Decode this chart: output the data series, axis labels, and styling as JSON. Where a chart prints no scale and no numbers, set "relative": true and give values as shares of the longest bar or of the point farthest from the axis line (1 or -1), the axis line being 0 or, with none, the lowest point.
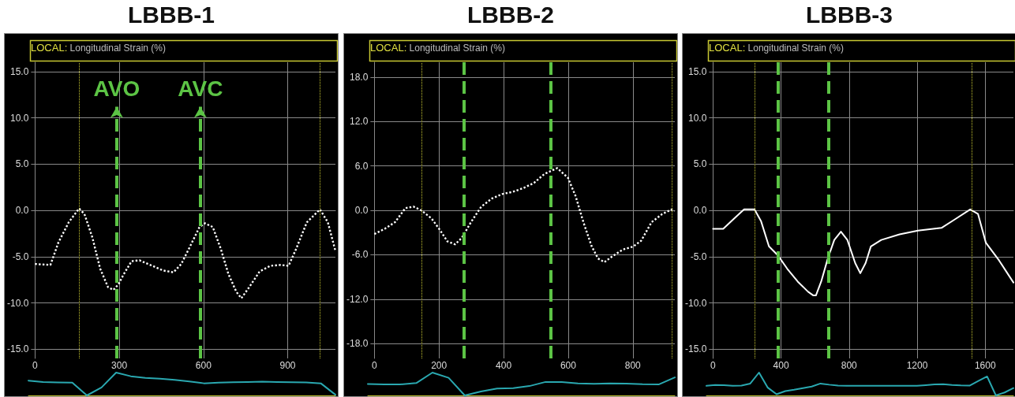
{
  "chart_data": [
    {
      "type": "line",
      "title": "LBBB-1",
      "ylabel": "Longitudinal Strain (%)",
      "annotations": [
        "LOCAL:"
      ],
      "color": "#ffffff",
      "line_style": "dotted",
      "marker": "none",
      "grid": true,
      "x": [
        0,
        55,
        83,
        120,
        157,
        176,
        204,
        232,
        260,
        279,
        297,
        316,
        344,
        372,
        418,
        456,
        493,
        521,
        549,
        586,
        605,
        633,
        661,
        689,
        717,
        735,
        763,
        800,
        838,
        875,
        903,
        931,
        968,
        1015,
        1043,
        1070
      ],
      "values": [
        -5.8,
        -5.9,
        -3.5,
        -1.3,
        0.2,
        -0.4,
        -2.9,
        -6.3,
        -8.3,
        -8.6,
        -8.0,
        -6.9,
        -5.5,
        -5.4,
        -6.0,
        -6.5,
        -6.7,
        -5.8,
        -4.1,
        -1.8,
        -1.4,
        -1.8,
        -4.1,
        -6.9,
        -8.8,
        -9.5,
        -8.3,
        -6.6,
        -6.0,
        -5.9,
        -6.0,
        -4.1,
        -1.3,
        0.1,
        -1.3,
        -4.4
      ],
      "xlim": [
        0,
        1070
      ],
      "xticks": [
        0,
        300,
        600,
        900
      ],
      "ylim": [
        -16,
        16
      ],
      "yticks": [
        {
          "value": -15,
          "label": "-15.0"
        },
        {
          "value": -10,
          "label": "-10.0"
        },
        {
          "value": -5,
          "label": "-5.0"
        },
        {
          "value": 0,
          "label": "0.0"
        },
        {
          "value": 5,
          "label": "5.0"
        },
        {
          "value": 10,
          "label": "10.0"
        },
        {
          "value": 15,
          "label": "15.0"
        }
      ],
      "ref_lines": [
        {
          "axis": "x",
          "value": 157,
          "color": "#c8c832",
          "line_style": "dotted"
        },
        {
          "axis": "x",
          "value": 1015,
          "color": "#c8c832",
          "line_style": "dotted"
        },
        {
          "axis": "x",
          "value": 291,
          "label": "AVO",
          "color": "#5cc445",
          "line_style": "dashed"
        },
        {
          "axis": "x",
          "value": 589,
          "label": "AVC",
          "color": "#5cc445",
          "line_style": "dashed"
        }
      ]
    },
    {
      "type": "line",
      "title": "LBBB-2",
      "ylabel": "Longitudinal Strain (%)",
      "annotations": [
        "LOCAL:"
      ],
      "color": "#ffffff",
      "line_style": "dotted",
      "marker": "none",
      "grid": true,
      "x": [
        0,
        32,
        64,
        96,
        121,
        145,
        177,
        202,
        226,
        250,
        271,
        299,
        331,
        364,
        396,
        429,
        461,
        494,
        526,
        546,
        566,
        599,
        623,
        647,
        672,
        692,
        712,
        737,
        769,
        801,
        826,
        858,
        891,
        919,
        929
      ],
      "values": [
        -3.2,
        -2.5,
        -1.6,
        0.3,
        0.5,
        0,
        -1.1,
        -2.6,
        -4.2,
        -4.6,
        -3.7,
        -1.6,
        0.5,
        1.6,
        2.2,
        2.5,
        3.0,
        3.7,
        4.9,
        5.3,
        5.7,
        4.4,
        1.9,
        -1.6,
        -4.8,
        -6.5,
        -7.0,
        -6.2,
        -5.3,
        -4.9,
        -4.1,
        -1.6,
        -0.5,
        0.1,
        -0.1
      ],
      "xlim": [
        0,
        930
      ],
      "xticks": [
        0,
        200,
        400,
        600,
        800
      ],
      "ylim": [
        -20,
        20
      ],
      "yticks": [
        {
          "value": -18,
          "label": "-18.0"
        },
        {
          "value": -12,
          "label": "-12.0"
        },
        {
          "value": -6,
          "label": "-6.0"
        },
        {
          "value": 0,
          "label": "0.0"
        },
        {
          "value": 6,
          "label": "6.0"
        },
        {
          "value": 12,
          "label": "12.0"
        },
        {
          "value": 18,
          "label": "18.0"
        }
      ],
      "ref_lines": [
        {
          "axis": "x",
          "value": 146,
          "color": "#c8c832",
          "line_style": "dotted"
        },
        {
          "axis": "x",
          "value": 921,
          "color": "#c8c832",
          "line_style": "dotted"
        },
        {
          "axis": "x",
          "value": 277,
          "color": "#5cc445",
          "line_style": "dashed"
        },
        {
          "axis": "x",
          "value": 547,
          "color": "#5cc445",
          "line_style": "dashed"
        }
      ]
    },
    {
      "type": "line",
      "title": "LBBB-3",
      "ylabel": "Longitudinal Strain (%)",
      "annotations": [
        "LOCAL:"
      ],
      "color": "#ffffff",
      "line_style": "solid",
      "marker": "none",
      "grid": true,
      "x": [
        0,
        60,
        129,
        183,
        244,
        283,
        329,
        383,
        436,
        498,
        559,
        590,
        605,
        636,
        675,
        713,
        752,
        790,
        836,
        866,
        897,
        928,
        989,
        1097,
        1205,
        1343,
        1420,
        1512,
        1558,
        1604,
        1681,
        1766
      ],
      "values": [
        -2.0,
        -2.0,
        -0.8,
        0.1,
        0.1,
        -1.2,
        -3.9,
        -4.9,
        -6.3,
        -7.7,
        -8.8,
        -9.2,
        -9.2,
        -7.7,
        -5.2,
        -3.2,
        -2.3,
        -3.2,
        -5.7,
        -6.8,
        -5.7,
        -3.9,
        -3.2,
        -2.6,
        -2.2,
        -1.9,
        -1.0,
        0.1,
        -0.4,
        -3.5,
        -5.4,
        -7.8
      ],
      "xlim": [
        0,
        1766
      ],
      "xticks": [
        0,
        400,
        800,
        1200,
        1600
      ],
      "ylim": [
        -16,
        16
      ],
      "yticks": [
        {
          "value": -15,
          "label": "-15.0"
        },
        {
          "value": -10,
          "label": "-10.0"
        },
        {
          "value": -5,
          "label": "-5.0"
        },
        {
          "value": 0,
          "label": "0.0"
        },
        {
          "value": 5,
          "label": "5.0"
        },
        {
          "value": 10,
          "label": "10.0"
        },
        {
          "value": 15,
          "label": "15.0"
        }
      ],
      "ref_lines": [
        {
          "axis": "x",
          "value": 244,
          "color": "#c8c832",
          "line_style": "dotted"
        },
        {
          "axis": "x",
          "value": 1521,
          "color": "#c8c832",
          "line_style": "dotted"
        },
        {
          "axis": "x",
          "value": 380,
          "color": "#5cc445",
          "line_style": "dashed"
        },
        {
          "axis": "x",
          "value": 678,
          "color": "#5cc445",
          "line_style": "dashed"
        }
      ]
    },
    {
      "type": "line",
      "relative": true,
      "color": "#2aa8b0",
      "marker": "none",
      "tick_labels": false,
      "categories": [
        null,
        null,
        null,
        null,
        null,
        null,
        null,
        null,
        null,
        null,
        null,
        null,
        null,
        null,
        null,
        null,
        null,
        null,
        null,
        null,
        null,
        null
      ],
      "values": [
        0.65,
        0.59,
        0.57,
        0.56,
        0,
        0.35,
        1,
        0.84,
        0.77,
        0.73,
        0.68,
        0.61,
        0.53,
        0.56,
        0.58,
        0.59,
        0.6,
        0.59,
        0.58,
        0.57,
        0.53,
        0.03
      ]
    },
    {
      "type": "line",
      "relative": true,
      "color": "#2aa8b0",
      "marker": "none",
      "tick_labels": false,
      "categories": [
        null,
        null,
        null,
        null,
        null,
        null,
        null,
        null,
        null,
        null,
        null,
        null,
        null,
        null,
        null,
        null,
        null,
        null,
        null,
        null
      ],
      "values": [
        0.5,
        0.48,
        0.48,
        0.54,
        1,
        0.77,
        0,
        0.17,
        0.3,
        0.32,
        0.41,
        0.59,
        0.59,
        0.53,
        0.51,
        0.53,
        0.52,
        0.49,
        0.48,
        0.79
      ]
    },
    {
      "type": "line",
      "relative": true,
      "color": "#2aa8b0",
      "marker": "none",
      "tick_labels": false,
      "categories": [
        null,
        null,
        null,
        null,
        null,
        null,
        null,
        null,
        null,
        null,
        null,
        null,
        null,
        null,
        null,
        null,
        null,
        null,
        null,
        null,
        null,
        null,
        null,
        null,
        null,
        null,
        null,
        null,
        null,
        null,
        null,
        null,
        null,
        null,
        null,
        null
      ],
      "values": [
        0.42,
        0.46,
        0.45,
        0.42,
        0.43,
        0.52,
        1,
        0.34,
        0.05,
        0.19,
        0.25,
        0.32,
        0.39,
        0.52,
        0.47,
        0.43,
        0.42,
        0.42,
        0.42,
        0.42,
        0.42,
        0.42,
        0.42,
        0.42,
        0.42,
        0.45,
        0.48,
        0.49,
        0.46,
        0.44,
        0.43,
        0.63,
        0.83,
        0,
        0.13,
        0.32
      ]
    }
  ]
}
